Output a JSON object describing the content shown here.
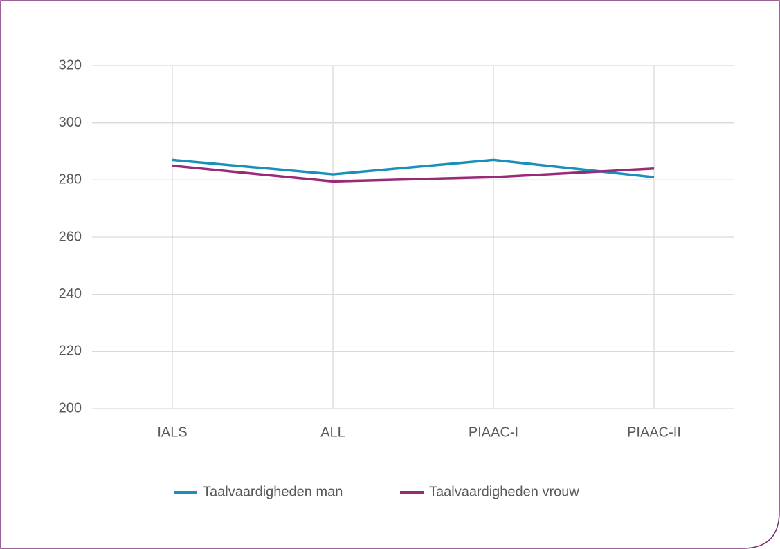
{
  "chart_data": {
    "type": "line",
    "categories": [
      "IALS",
      "ALL",
      "PIAAC-I",
      "PIAAC-II"
    ],
    "series": [
      {
        "name": "Taalvaardigheden man",
        "color": "#1a8fbb",
        "values": [
          287,
          282,
          287,
          281
        ]
      },
      {
        "name": "Taalvaardigheden vrouw",
        "color": "#982a78",
        "values": [
          285,
          279.5,
          281,
          284
        ]
      }
    ],
    "ylim": [
      200,
      320
    ],
    "yticks": [
      200,
      220,
      240,
      260,
      280,
      300,
      320
    ],
    "grid": true,
    "legend": "bottom"
  }
}
